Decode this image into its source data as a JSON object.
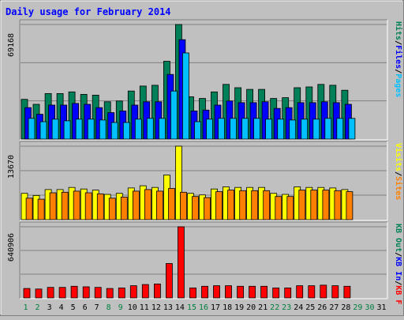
{
  "title": "Daily usage for February 2014",
  "colors": {
    "background": "#c0c0c0",
    "plot_bg": "#c0c0c0",
    "title": "#0000ff",
    "weekday_label": "#000000",
    "weekend_label": "#008040",
    "hits": "#008058",
    "files": "#0000ff",
    "pages": "#00c0ff",
    "visits": "#ffff00",
    "sites": "#ff8000",
    "kb_f": "#ff0000",
    "kb_in": "#0000ff",
    "kb_out": "#008058"
  },
  "chart_data": [
    {
      "type": "bar",
      "panel": "top",
      "max_label": "69168",
      "ylim": [
        0,
        69168
      ],
      "grid": true,
      "legend": [
        {
          "text": "Pages",
          "color_key": "pages"
        },
        {
          "text": "/",
          "color_key": "weekday_label"
        },
        {
          "text": "Files",
          "color_key": "files"
        },
        {
          "text": "/",
          "color_key": "weekday_label"
        },
        {
          "text": "Hits",
          "color_key": "hits"
        }
      ],
      "categories": [
        "1",
        "2",
        "3",
        "4",
        "5",
        "6",
        "7",
        "8",
        "9",
        "10",
        "11",
        "12",
        "13",
        "14",
        "15",
        "16",
        "17",
        "18",
        "19",
        "20",
        "21",
        "22",
        "23",
        "24",
        "25",
        "26",
        "27",
        "28",
        "29",
        "30",
        "31"
      ],
      "weekend_days": [
        "1",
        "2",
        "8",
        "9",
        "15",
        "16",
        "22",
        "23",
        "29",
        "30"
      ],
      "series": [
        {
          "name": "Hits",
          "color_key": "hits",
          "values": [
            24000,
            21000,
            27500,
            27500,
            28500,
            27000,
            26500,
            22500,
            23000,
            29000,
            32000,
            32500,
            47000,
            69168,
            25500,
            24500,
            28500,
            33000,
            31000,
            30000,
            30000,
            24500,
            25000,
            31000,
            31500,
            33000,
            32500,
            29500,
            null,
            null,
            null
          ]
        },
        {
          "name": "Files",
          "color_key": "files",
          "values": [
            19000,
            15000,
            20500,
            20500,
            21500,
            21000,
            19000,
            16000,
            17000,
            20500,
            22500,
            22500,
            39000,
            60000,
            17000,
            17500,
            20500,
            23000,
            22000,
            22000,
            22500,
            18500,
            19000,
            22000,
            22000,
            22500,
            22000,
            21000,
            null,
            null,
            null
          ]
        },
        {
          "name": "Pages",
          "color_key": "pages",
          "values": [
            12500,
            10500,
            12000,
            11000,
            12000,
            12000,
            11500,
            10000,
            10000,
            12000,
            12500,
            12500,
            29000,
            52000,
            10500,
            12000,
            12500,
            12500,
            12500,
            12500,
            12000,
            12000,
            11500,
            12000,
            12000,
            12500,
            12500,
            12500,
            null,
            null,
            null
          ]
        }
      ]
    },
    {
      "type": "bar",
      "panel": "middle",
      "max_label": "13670",
      "ylim": [
        0,
        13670
      ],
      "grid": true,
      "legend": [
        {
          "text": "Sites",
          "color_key": "sites"
        },
        {
          "text": "/",
          "color_key": "weekday_label"
        },
        {
          "text": "Visits",
          "color_key": "visits"
        }
      ],
      "categories": [
        "1",
        "2",
        "3",
        "4",
        "5",
        "6",
        "7",
        "8",
        "9",
        "10",
        "11",
        "12",
        "13",
        "14",
        "15",
        "16",
        "17",
        "18",
        "19",
        "20",
        "21",
        "22",
        "23",
        "24",
        "25",
        "26",
        "27",
        "28",
        "29",
        "30",
        "31"
      ],
      "series": [
        {
          "name": "Visits",
          "color_key": "visits",
          "values": [
            4900,
            4500,
            5600,
            5600,
            6000,
            5700,
            5500,
            4700,
            4900,
            5900,
            6300,
            6000,
            8300,
            13670,
            4900,
            4600,
            5700,
            6100,
            6000,
            6000,
            6000,
            4900,
            4700,
            6100,
            6000,
            6000,
            5900,
            5600,
            null,
            null,
            null
          ]
        },
        {
          "name": "Sites",
          "color_key": "sites",
          "values": [
            4000,
            3800,
            5000,
            5100,
            5300,
            5000,
            4800,
            4000,
            4200,
            5300,
            5600,
            5300,
            5800,
            5100,
            4300,
            4100,
            5200,
            5500,
            5400,
            5400,
            5400,
            4300,
            4300,
            5500,
            5500,
            5500,
            5400,
            5200,
            null,
            null,
            null
          ]
        }
      ]
    },
    {
      "type": "bar",
      "panel": "bottom",
      "max_label": "640906",
      "ylim": [
        0,
        640906
      ],
      "grid": true,
      "legend": [
        {
          "text": "KB F",
          "color_key": "kb_f"
        },
        {
          "text": "/",
          "color_key": "weekday_label"
        },
        {
          "text": "KB In",
          "color_key": "kb_in"
        },
        {
          "text": "/",
          "color_key": "weekday_label"
        },
        {
          "text": "KB Out",
          "color_key": "kb_out"
        }
      ],
      "categories": [
        "1",
        "2",
        "3",
        "4",
        "5",
        "6",
        "7",
        "8",
        "9",
        "10",
        "11",
        "12",
        "13",
        "14",
        "15",
        "16",
        "17",
        "18",
        "19",
        "20",
        "21",
        "22",
        "23",
        "24",
        "25",
        "26",
        "27",
        "28",
        "29",
        "30",
        "31"
      ],
      "series": [
        {
          "name": "KB F",
          "color_key": "kb_f",
          "values": [
            85000,
            80000,
            95000,
            95000,
            105000,
            100000,
            95000,
            85000,
            90000,
            110000,
            120000,
            125000,
            310000,
            640906,
            90000,
            105000,
            110000,
            110000,
            105000,
            105000,
            105000,
            90000,
            90000,
            110000,
            110000,
            115000,
            110000,
            105000,
            null,
            null,
            null
          ]
        }
      ]
    }
  ]
}
